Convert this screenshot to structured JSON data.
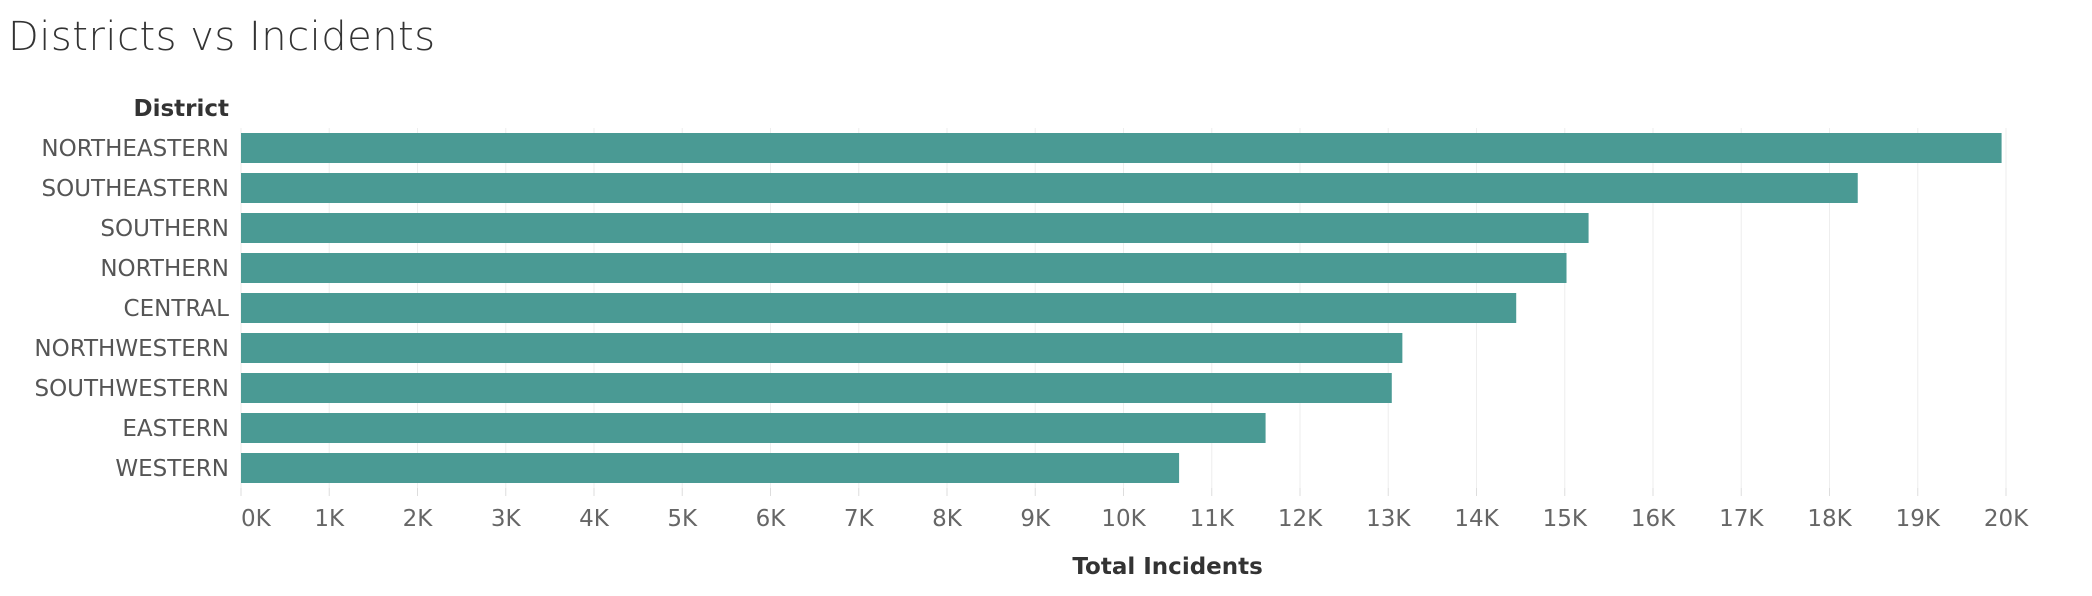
{
  "chart_data": {
    "type": "bar",
    "orientation": "horizontal",
    "title": "Districts vs Incidents",
    "row_header": "District",
    "xlabel": "Total Incidents",
    "categories": [
      "NORTHEASTERN",
      "SOUTHEASTERN",
      "SOUTHERN",
      "NORTHERN",
      "CENTRAL",
      "NORTHWESTERN",
      "SOUTHWESTERN",
      "EASTERN",
      "WESTERN"
    ],
    "values": [
      19950,
      18320,
      15270,
      15020,
      14450,
      13160,
      13040,
      11610,
      10630
    ],
    "xlim": [
      0,
      21000
    ],
    "ticks": [
      {
        "value": 0,
        "label": "0K"
      },
      {
        "value": 1000,
        "label": "1K"
      },
      {
        "value": 2000,
        "label": "2K"
      },
      {
        "value": 3000,
        "label": "3K"
      },
      {
        "value": 4000,
        "label": "4K"
      },
      {
        "value": 5000,
        "label": "5K"
      },
      {
        "value": 6000,
        "label": "6K"
      },
      {
        "value": 7000,
        "label": "7K"
      },
      {
        "value": 8000,
        "label": "8K"
      },
      {
        "value": 9000,
        "label": "9K"
      },
      {
        "value": 10000,
        "label": "10K"
      },
      {
        "value": 11000,
        "label": "11K"
      },
      {
        "value": 12000,
        "label": "12K"
      },
      {
        "value": 13000,
        "label": "13K"
      },
      {
        "value": 14000,
        "label": "14K"
      },
      {
        "value": 15000,
        "label": "15K"
      },
      {
        "value": 16000,
        "label": "16K"
      },
      {
        "value": 17000,
        "label": "17K"
      },
      {
        "value": 18000,
        "label": "18K"
      },
      {
        "value": 19000,
        "label": "19K"
      },
      {
        "value": 20000,
        "label": "20K"
      }
    ],
    "grid": true,
    "legend": "none",
    "bar_color": "#4a9a94",
    "grid_color": "#eeeeee"
  }
}
